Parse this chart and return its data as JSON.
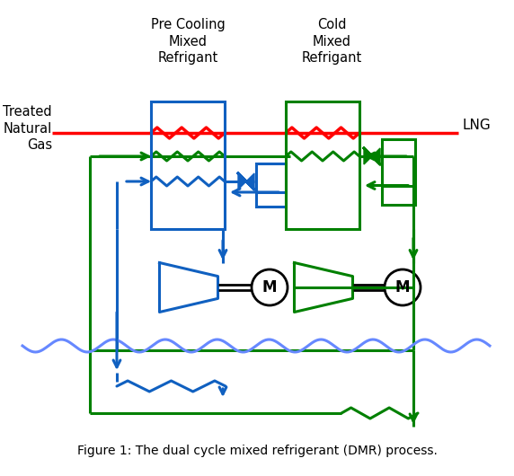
{
  "title": "Figure 1: The dual cycle mixed refrigerant (DMR) process.",
  "label_pre_cooling": "Pre Cooling\nMixed\nRefrigant",
  "label_cold": "Cold\nMixed\nRefrigant",
  "label_treated": "Treated\nNatural\nGas",
  "label_lng": "LNG",
  "bg_color": "#ffffff",
  "blue": "#1060c0",
  "green": "#008000",
  "red": "#ff0000",
  "wave_blue": "#6688ff",
  "black": "#000000",
  "lw": 2.2
}
